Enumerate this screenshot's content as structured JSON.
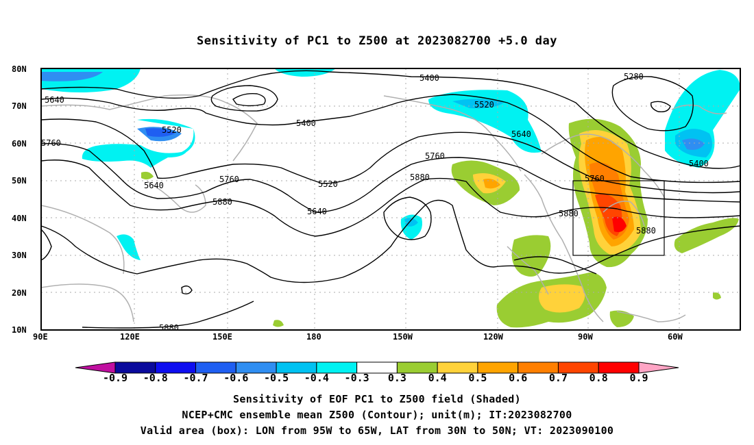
{
  "title": "Sensitivity of PC1 to Z500 at 2023082700 +5.0 day",
  "lat_labels": [
    "80N",
    "70N",
    "60N",
    "50N",
    "40N",
    "30N",
    "20N",
    "10N"
  ],
  "lon_labels": [
    "90E",
    "120E",
    "150E",
    "180",
    "150W",
    "120W",
    "90W",
    "60W"
  ],
  "contour_labels": [
    {
      "text": "5400"
    },
    {
      "text": "5280"
    },
    {
      "text": "5640"
    },
    {
      "text": "5520"
    },
    {
      "text": "5400"
    },
    {
      "text": "5520"
    },
    {
      "text": "5640"
    },
    {
      "text": "5760"
    },
    {
      "text": "5760"
    },
    {
      "text": "5880"
    },
    {
      "text": "5640"
    },
    {
      "text": "5760"
    },
    {
      "text": "5880"
    },
    {
      "text": "5520"
    },
    {
      "text": "5640"
    },
    {
      "text": "5760"
    },
    {
      "text": "5880"
    },
    {
      "text": "5880"
    },
    {
      "text": "5400"
    },
    {
      "text": "5880"
    }
  ],
  "colorbar": {
    "colors": [
      "#a1d4e9",
      "#0a0a9c",
      "#0e0ef0",
      "#1f5ff2",
      "#2f8ef2",
      "#00c2f2",
      "#00f2f2",
      "#ffffff",
      "#9acd32",
      "#ffd23a",
      "#ffa400",
      "#ff7f00",
      "#ff4500",
      "#ff0000"
    ],
    "left_arrow_color": "#c00fa0",
    "right_arrow_color": "#ffa5c5",
    "labels": [
      "-0.9",
      "-0.8",
      "-0.7",
      "-0.6",
      "-0.5",
      "-0.4",
      "-0.3",
      "0.3",
      "0.4",
      "0.5",
      "0.6",
      "0.7",
      "0.8",
      "0.9"
    ]
  },
  "captions": [
    "Sensitivity of EOF PC1 to Z500 field (Shaded)",
    "NCEP+CMC ensemble mean Z500 (Contour); unit(m); IT:2023082700",
    "Valid area (box): LON from 95W to 65W, LAT from 30N to 50N; VT: 2023090100"
  ],
  "valid_box": {
    "lon_range": [
      "95W",
      "65W"
    ],
    "lat_range": [
      "30N",
      "50N"
    ]
  }
}
